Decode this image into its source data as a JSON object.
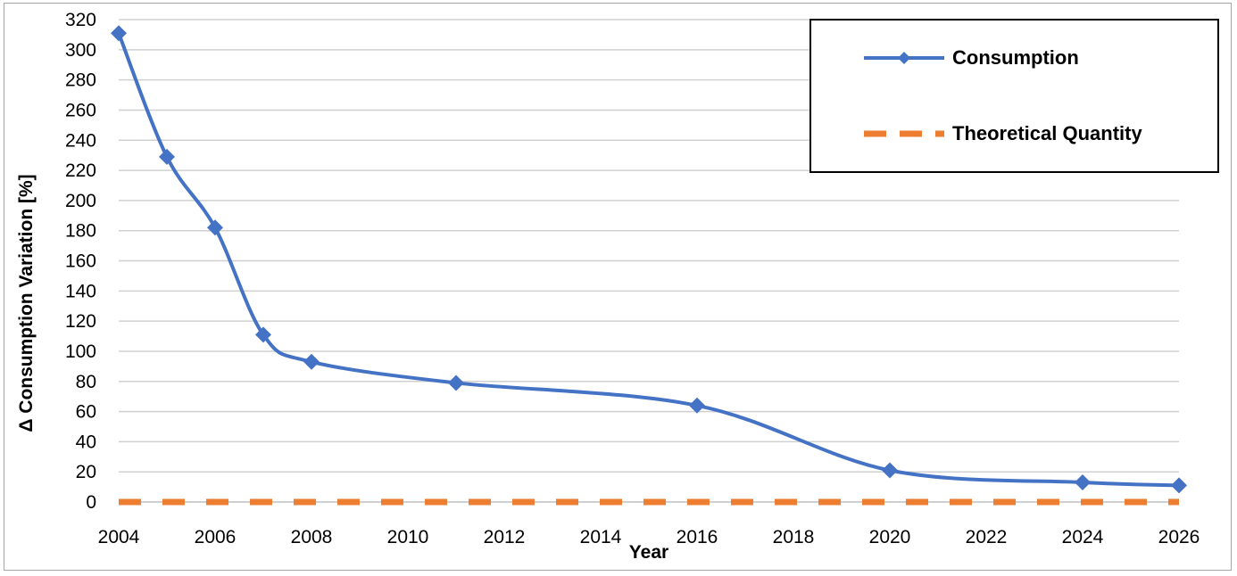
{
  "chart_data": {
    "type": "line",
    "xlabel": "Year",
    "ylabel": "Δ Consumption Variation [%]",
    "xlim": [
      2004,
      2026
    ],
    "ylim": [
      0,
      320
    ],
    "x_ticks": [
      "2004",
      "2006",
      "2008",
      "2010",
      "2012",
      "2014",
      "2016",
      "2018",
      "2020",
      "2022",
      "2024",
      "2026"
    ],
    "y_ticks": [
      "0",
      "20",
      "40",
      "60",
      "80",
      "100",
      "120",
      "140",
      "160",
      "180",
      "200",
      "220",
      "240",
      "260",
      "280",
      "300",
      "320"
    ],
    "grid": "horizontal",
    "legend_position": "top-right",
    "series": [
      {
        "name": "Consumption",
        "color": "#4472c4",
        "style": "solid-smooth",
        "marker": "diamond",
        "x": [
          2004,
          2005,
          2006,
          2007,
          2008,
          2011,
          2016,
          2020,
          2024,
          2026
        ],
        "y": [
          311,
          229,
          182,
          111,
          93,
          79,
          64,
          21,
          13,
          11
        ]
      },
      {
        "name": "Theoretical Quantity",
        "color": "#ed7d31",
        "style": "dashed",
        "marker": "none",
        "x": [
          2004,
          2026
        ],
        "y": [
          0,
          0
        ]
      }
    ]
  }
}
